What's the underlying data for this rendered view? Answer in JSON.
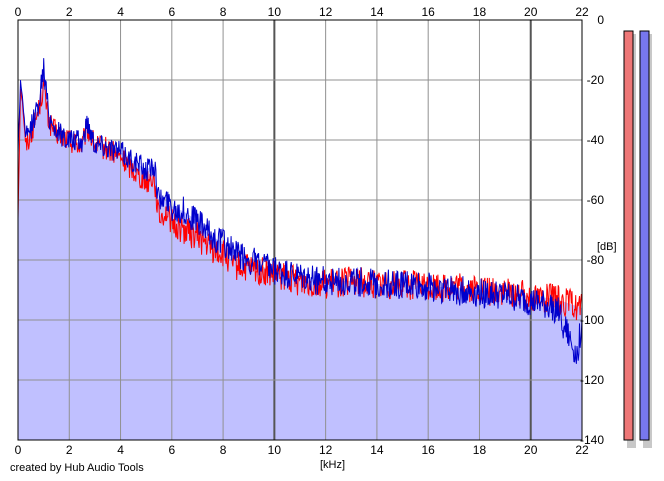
{
  "credit": "created by Hub Audio Tools",
  "chart_data": {
    "type": "area",
    "xlabel": "[kHz]",
    "ylabel": "[dB]",
    "xlim": [
      0,
      22
    ],
    "ylim": [
      -140,
      0
    ],
    "x_ticks": [
      "0",
      "2",
      "4",
      "6",
      "8",
      "10",
      "12",
      "14",
      "16",
      "18",
      "20",
      "22"
    ],
    "y_ticks": [
      "0",
      "-20",
      "-40",
      "-60",
      "-80",
      "-100",
      "-120",
      "-140"
    ],
    "grid": true,
    "series": [
      {
        "color": "#ff0000",
        "x": [
          0,
          0.1,
          0.2,
          0.3,
          0.5,
          0.8,
          1.0,
          1.2,
          1.5,
          2.0,
          2.5,
          2.7,
          3.0,
          3.5,
          4.0,
          4.5,
          5.0,
          5.3,
          5.5,
          5.8,
          6.0,
          6.5,
          7.0,
          7.5,
          8.0,
          8.5,
          9.0,
          9.5,
          10.0,
          11.0,
          12.0,
          13.0,
          14.0,
          15.0,
          16.0,
          17.0,
          18.0,
          19.0,
          20.0,
          21.0,
          22.0
        ],
        "y": [
          -66,
          -22,
          -30,
          -42,
          -38,
          -30,
          -22,
          -34,
          -38,
          -40,
          -42,
          -36,
          -42,
          -43,
          -46,
          -50,
          -54,
          -52,
          -66,
          -64,
          -68,
          -70,
          -72,
          -76,
          -78,
          -82,
          -83,
          -84,
          -85,
          -87,
          -88,
          -87,
          -88,
          -88,
          -89,
          -89,
          -90,
          -91,
          -92,
          -93,
          -96
        ]
      },
      {
        "color": "#0000cc",
        "x": [
          0,
          0.1,
          0.2,
          0.3,
          0.5,
          0.8,
          1.0,
          1.2,
          1.5,
          2.0,
          2.5,
          2.7,
          3.0,
          3.5,
          4.0,
          4.5,
          5.0,
          5.3,
          5.5,
          5.8,
          6.0,
          6.5,
          7.0,
          7.5,
          8.0,
          8.5,
          9.0,
          9.5,
          10.0,
          11.0,
          12.0,
          13.0,
          14.0,
          15.0,
          16.0,
          17.0,
          18.0,
          19.0,
          20.0,
          21.0,
          21.8,
          22.0
        ],
        "y": [
          -44,
          -20,
          -28,
          -40,
          -36,
          -28,
          -16,
          -32,
          -37,
          -40,
          -41,
          -34,
          -41,
          -42,
          -44,
          -47,
          -50,
          -48,
          -60,
          -60,
          -62,
          -64,
          -67,
          -72,
          -74,
          -78,
          -80,
          -82,
          -84,
          -86,
          -87,
          -87,
          -88,
          -88,
          -89,
          -90,
          -91,
          -92,
          -94,
          -96,
          -112,
          -100
        ]
      }
    ],
    "meters": [
      {
        "color": "#ee7777"
      },
      {
        "color": "#7777ee"
      }
    ]
  }
}
